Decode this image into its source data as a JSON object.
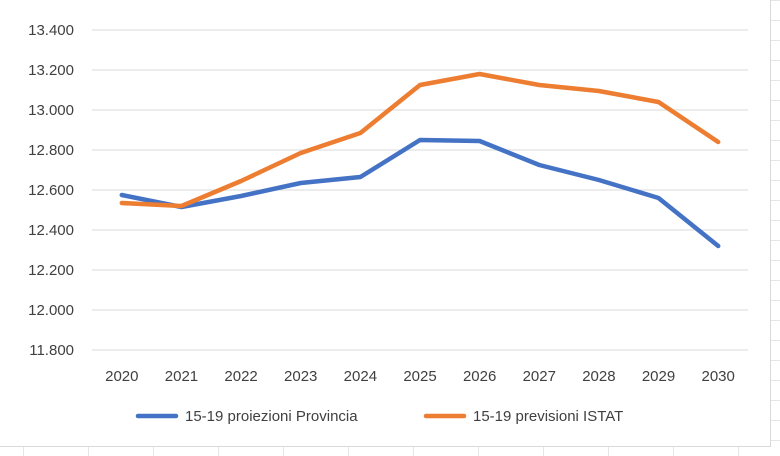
{
  "chart_data": {
    "type": "line",
    "title": "",
    "xlabel": "",
    "ylabel": "",
    "x": [
      "2020",
      "2021",
      "2022",
      "2023",
      "2024",
      "2025",
      "2026",
      "2027",
      "2028",
      "2029",
      "2030"
    ],
    "ylim": [
      11800,
      13400
    ],
    "yticks": [
      11800,
      12000,
      12200,
      12400,
      12600,
      12800,
      13000,
      13200,
      13400
    ],
    "ytick_labels": [
      "11.800",
      "12.000",
      "12.200",
      "12.400",
      "12.600",
      "12.800",
      "13.000",
      "13.200",
      "13.400"
    ],
    "grid": true,
    "legend": "bottom",
    "series": [
      {
        "name": "15-19 proiezioni Provincia",
        "color": "#4472C4",
        "values": [
          12575,
          12515,
          12570,
          12635,
          12665,
          12850,
          12845,
          12725,
          12650,
          12560,
          12320
        ]
      },
      {
        "name": "15-19 previsioni ISTAT",
        "color": "#ED7D31",
        "values": [
          12535,
          12520,
          12645,
          12785,
          12885,
          13125,
          13180,
          13125,
          13095,
          13040,
          12840
        ]
      }
    ]
  }
}
